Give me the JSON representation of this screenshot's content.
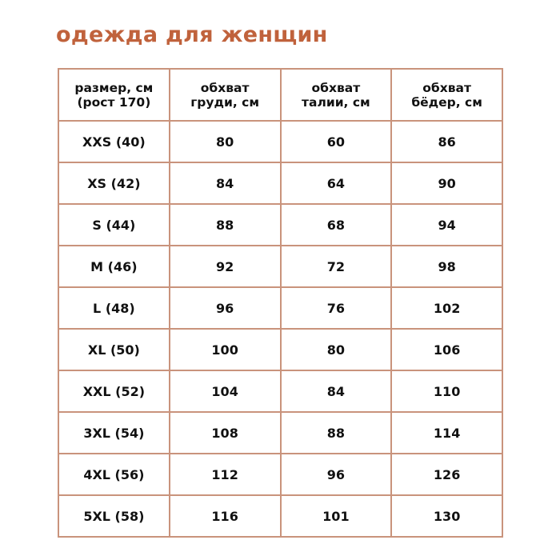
{
  "title": "одежда для женщин",
  "colors": {
    "accent": "#c0623c",
    "border": "#c9937c"
  },
  "table": {
    "headers": [
      [
        "размер, см",
        "(рост 170)"
      ],
      [
        "обхват",
        "груди, см"
      ],
      [
        "обхват",
        "талии, см"
      ],
      [
        "обхват",
        "бёдер, см"
      ]
    ],
    "rows": [
      [
        "XXS (40)",
        "80",
        "60",
        "86"
      ],
      [
        "XS (42)",
        "84",
        "64",
        "90"
      ],
      [
        "S (44)",
        "88",
        "68",
        "94"
      ],
      [
        "M (46)",
        "92",
        "72",
        "98"
      ],
      [
        "L (48)",
        "96",
        "76",
        "102"
      ],
      [
        "XL (50)",
        "100",
        "80",
        "106"
      ],
      [
        "XXL (52)",
        "104",
        "84",
        "110"
      ],
      [
        "3XL (54)",
        "108",
        "88",
        "114"
      ],
      [
        "4XL (56)",
        "112",
        "96",
        "126"
      ],
      [
        "5XL (58)",
        "116",
        "101",
        "130"
      ]
    ]
  }
}
